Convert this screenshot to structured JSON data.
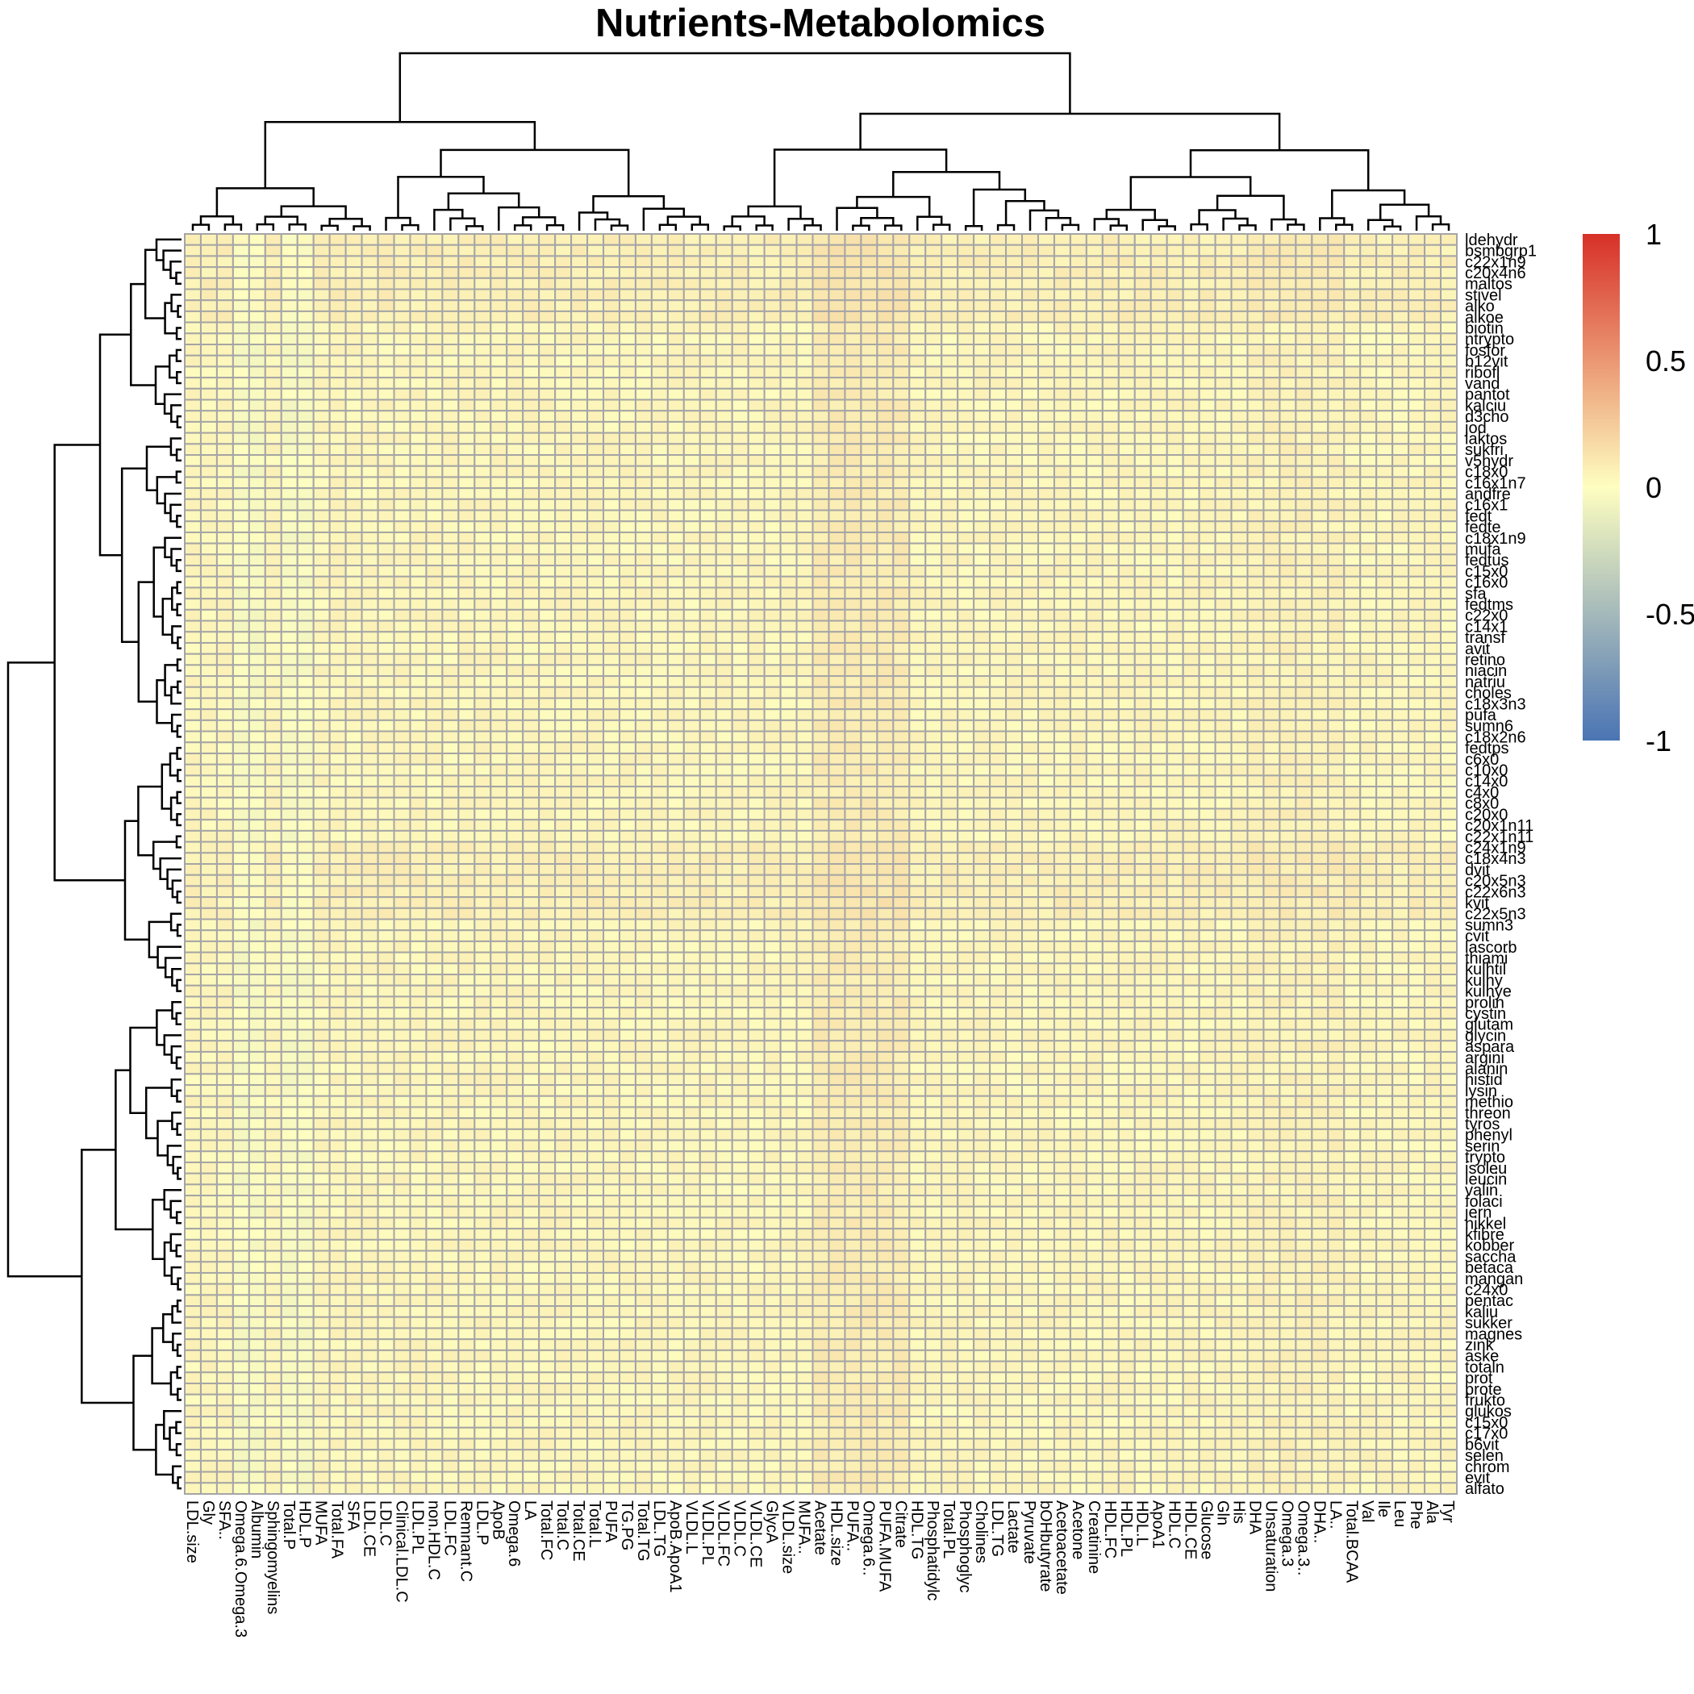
{
  "chart_data": {
    "type": "heatmap",
    "title": "Nutrients-Metabolomics",
    "color_scale": {
      "min": -1,
      "max": 1,
      "ticks": [
        "1",
        "0.5",
        "0",
        "-0.5",
        "-1"
      ],
      "low_color": "#4a74b4",
      "mid_color": "#fefec0",
      "high_color": "#d73027"
    },
    "rows": [
      "ldehydr",
      "bsmbgrp1",
      "c22x1n9",
      "c20x4n6",
      "maltos",
      "stivel",
      "alko",
      "alkoe",
      "biotin",
      "ntrypto",
      "fosfor",
      "b12vit",
      "ribofl",
      "vand",
      "pantot",
      "kalciu",
      "d3cho",
      "jod",
      "laktos",
      "sukfri",
      "v5hydr",
      "c18x0",
      "c16x1n7",
      "andfre",
      "c16x1",
      "fedt",
      "fedte",
      "c18x1n9",
      "mufa",
      "fedtus",
      "c15x0",
      "c16x0",
      "sfa",
      "fedtms",
      "c22x0",
      "c14x1",
      "transf",
      "avit",
      "retino",
      "niacin",
      "natriu",
      "choles",
      "c18x3n3",
      "pufa",
      "sumn6",
      "c18x2n6",
      "fedtps",
      "c6x0",
      "c10x0",
      "c14x0",
      "c4x0",
      "c8x0",
      "c20x0",
      "c20x1n11",
      "c22x1n11",
      "c24x1n9",
      "c18x4n3",
      "dvit",
      "c20x5n3",
      "c22x6n3",
      "kvit",
      "c22x5n3",
      "sumn3",
      "cvit",
      "lascorb",
      "thiami",
      "kulhtil",
      "kulhy",
      "kulhye",
      "prolin",
      "cystin",
      "glutam",
      "glycin",
      "aspara",
      "argini",
      "alanin",
      "histid",
      "lysin",
      "methio",
      "threon",
      "tyros",
      "phenyl",
      "serin",
      "trypto",
      "isoleu",
      "leucin",
      "valin",
      "folaci",
      "jern",
      "nikkel",
      "kfibre",
      "kobber",
      "saccha",
      "betaca",
      "mangan",
      "c24x0",
      "pentac",
      "kaliu",
      "sukker",
      "magnes",
      "zink",
      "aske",
      "totaln",
      "prot",
      "prote",
      "frukto",
      "glukos",
      "c15x0",
      "c17x0",
      "b6vit",
      "selen",
      "chrom",
      "evit",
      "alfato"
    ],
    "columns": [
      "LDL.size",
      "Gly",
      "SFA..",
      "Omega.6.Omega.3",
      "Albumin",
      "Sphingomyelins",
      "Total.P",
      "HDL.P",
      "MUFA",
      "Total.FA",
      "SFA",
      "LDL.CE",
      "LDL.C",
      "Clinical.LDL.C",
      "LDL.PL",
      "non.HDL.C",
      "LDL.FC",
      "Remnant.C",
      "LDL.P",
      "ApoB",
      "Omega.6",
      "LA",
      "Total.FC",
      "Total.C",
      "Total.CE",
      "Total.L",
      "PUFA",
      "TG.PG",
      "Total.TG",
      "LDL.TG",
      "ApoB.ApoA1",
      "VLDL.L",
      "VLDL.PL",
      "VLDL.FC",
      "VLDL.C",
      "VLDL.CE",
      "GlycA",
      "VLDL.size",
      "MUFA..",
      "Acetate",
      "HDL.size",
      "PUFA..",
      "Omega.6..",
      "PUFA.MUFA",
      "Citrate",
      "HDL.TG",
      "Phosphatidylc",
      "Total.PL",
      "Phosphoglyc",
      "Cholines",
      "LDL.TG",
      "Lactate",
      "Pyruvate",
      "bOHbutyrate",
      "Acetoacetate",
      "Acetone",
      "Creatinine",
      "HDL.FC",
      "HDL.PL",
      "HDL.L",
      "ApoA1",
      "HDL.C",
      "HDL.CE",
      "Glucose",
      "Gln",
      "His",
      "DHA",
      "Unsaturation",
      "Omega.3",
      "Omega.3..",
      "DHA..",
      "LA..",
      "Total.BCAA",
      "Val",
      "Ile",
      "Leu",
      "Phe",
      "Ala",
      "Tyr"
    ],
    "value_range_observed": [
      -0.15,
      0.18
    ],
    "description_of_values": "all correlations near zero (pale yellow); slightly positive around Acetate–Citrate columns and Omega.3/DHA columns; slightly negative around Omega.6.Omega.3 and HDL.P columns"
  }
}
